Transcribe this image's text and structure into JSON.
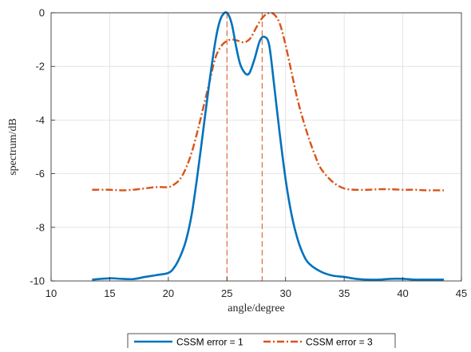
{
  "chart_data": {
    "type": "line",
    "title": "",
    "xlabel": "angle/degree",
    "ylabel": "spectrum/dB",
    "xlim": [
      10,
      45
    ],
    "ylim": [
      -10,
      0
    ],
    "xticks": [
      10,
      15,
      20,
      25,
      30,
      35,
      40,
      45
    ],
    "yticks": [
      0,
      -2,
      -4,
      -6,
      -8,
      -10
    ],
    "grid": true,
    "legend_placement": "bottom-outside",
    "reference_lines": [
      {
        "x": 25,
        "color": "#D95319",
        "style": "dashed"
      },
      {
        "x": 28,
        "color": "#D95319",
        "style": "dashed"
      }
    ],
    "series": [
      {
        "name": "CSSM error = 1",
        "color": "#0072BD",
        "style": "solid",
        "x": [
          13.5,
          15,
          16,
          17,
          18,
          19,
          20,
          20.5,
          21,
          21.5,
          22,
          22.5,
          23,
          23.5,
          24,
          24.3,
          24.6,
          25,
          25.4,
          25.8,
          26.2,
          26.8,
          27.3,
          27.8,
          28.2,
          28.6,
          29,
          29.5,
          30,
          30.5,
          31,
          31.5,
          32,
          33,
          34,
          35,
          36,
          37,
          38,
          39,
          40,
          41,
          42,
          43.5
        ],
        "y": [
          -9.95,
          -9.9,
          -9.92,
          -9.93,
          -9.85,
          -9.78,
          -9.7,
          -9.5,
          -9.1,
          -8.5,
          -7.5,
          -6.0,
          -4.3,
          -2.6,
          -1.1,
          -0.45,
          -0.1,
          0.0,
          -0.4,
          -1.3,
          -2.0,
          -2.3,
          -1.8,
          -1.05,
          -0.9,
          -1.2,
          -2.6,
          -4.5,
          -6.2,
          -7.5,
          -8.4,
          -9.0,
          -9.35,
          -9.65,
          -9.8,
          -9.85,
          -9.92,
          -9.95,
          -9.95,
          -9.92,
          -9.92,
          -9.95,
          -9.95,
          -9.95
        ]
      },
      {
        "name": "CSSM error = 3",
        "color": "#D95319",
        "style": "dashdot",
        "x": [
          13.5,
          15,
          16,
          17,
          18,
          19,
          20,
          20.5,
          21,
          21.5,
          22,
          22.5,
          23,
          23.5,
          24,
          24.5,
          25,
          25.5,
          26,
          26.5,
          27,
          27.5,
          28,
          28.5,
          29,
          29.5,
          30,
          30.5,
          31,
          31.5,
          32,
          32.5,
          33,
          34,
          35,
          36,
          37,
          38,
          39,
          40,
          41,
          42,
          43.5
        ],
        "y": [
          -6.6,
          -6.6,
          -6.62,
          -6.6,
          -6.55,
          -6.5,
          -6.5,
          -6.4,
          -6.2,
          -5.8,
          -5.2,
          -4.4,
          -3.5,
          -2.6,
          -1.7,
          -1.25,
          -1.05,
          -1.0,
          -1.05,
          -1.1,
          -0.95,
          -0.55,
          -0.2,
          -0.02,
          -0.05,
          -0.4,
          -1.2,
          -2.2,
          -3.2,
          -4.0,
          -4.7,
          -5.3,
          -5.8,
          -6.3,
          -6.55,
          -6.6,
          -6.6,
          -6.58,
          -6.58,
          -6.6,
          -6.6,
          -6.62,
          -6.62
        ]
      }
    ]
  }
}
